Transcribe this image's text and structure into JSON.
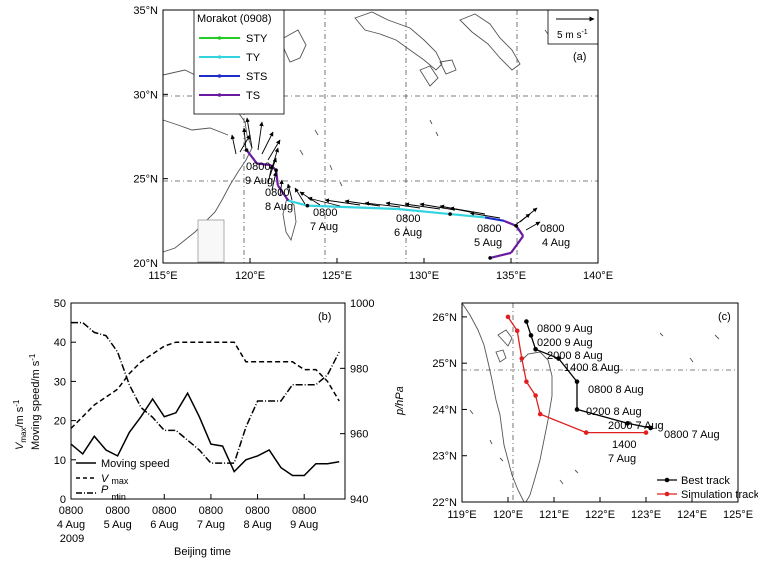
{
  "panel_a": {
    "label": "(a)",
    "legend_title": "Morakot (0908)",
    "legend": [
      {
        "name": "STY",
        "color": "#22cc22"
      },
      {
        "name": "TY",
        "color": "#33d3e0"
      },
      {
        "name": "STS",
        "color": "#1e2cc8"
      },
      {
        "name": "TS",
        "color": "#6a1aa0"
      }
    ],
    "scale_label": "5 m s",
    "scale_sup": "-1",
    "xticks": [
      "115°E",
      "120°E",
      "125°E",
      "130°E",
      "135°E",
      "140°E"
    ],
    "yticks": [
      "20°N",
      "25°N",
      "30°N",
      "35°N"
    ],
    "labels": [
      {
        "t1": "0800",
        "t2": "4 Aug"
      },
      {
        "t1": "0800",
        "t2": "5 Aug"
      },
      {
        "t1": "0800",
        "t2": "6 Aug"
      },
      {
        "t1": "0800",
        "t2": "7 Aug"
      },
      {
        "t1": "0800",
        "t2": "8 Aug"
      },
      {
        "t1": "0800",
        "t2": "9 Aug"
      }
    ]
  },
  "panel_b": {
    "label": "(b)",
    "ylabel_left_1": "V",
    "ylabel_left_sub": "max",
    "ylabel_left_2": "/m s",
    "ylabel_left_sup": "-1",
    "ylabel_left_3": "Moving speed/m s",
    "ylabel_left_3_sup": "-1",
    "ylabel_right": "p/hPa",
    "xlabel": "Beijing time",
    "xticks": [
      {
        "t1": "0800",
        "t2": "4 Aug",
        "t3": "2009"
      },
      {
        "t1": "0800",
        "t2": "5 Aug",
        "t3": ""
      },
      {
        "t1": "0800",
        "t2": "6 Aug",
        "t3": ""
      },
      {
        "t1": "0800",
        "t2": "7 Aug",
        "t3": ""
      },
      {
        "t1": "0800",
        "t2": "8 Aug",
        "t3": ""
      },
      {
        "t1": "0800",
        "t2": "9 Aug",
        "t3": ""
      }
    ],
    "yticks_left": [
      "0",
      "10",
      "20",
      "30",
      "40",
      "50"
    ],
    "yticks_right": [
      "940",
      "960",
      "980",
      "1000"
    ],
    "legend": {
      "moving": "Moving speed",
      "vmax_main": "V",
      "vmax_sub": "max",
      "pmin_main": "P",
      "pmin_sub": "min"
    }
  },
  "panel_c": {
    "label": "(c)",
    "xticks": [
      "119°E",
      "120°E",
      "121°E",
      "122°E",
      "123°E",
      "124°E",
      "125°E"
    ],
    "yticks": [
      "22°N",
      "23°N",
      "24°N",
      "25°N",
      "26°N"
    ],
    "legend": {
      "best": "Best track",
      "sim": "Simulation track"
    },
    "labels": [
      "0800 9 Aug",
      "0200 9 Aug",
      "2000 8 Aug",
      "1400 8 Aug",
      "0800 8 Aug",
      "0200 8 Aug",
      "2000 7 Aug",
      "0800 7 Aug",
      "1400",
      "7 Aug"
    ]
  },
  "chart_data": [
    {
      "type": "line",
      "panel": "a",
      "title": "Morakot (0908)",
      "xlim": [
        115,
        140
      ],
      "ylim": [
        20,
        35
      ],
      "grid": "dashed at 120E, 125E, 130E, 135E, 25N, 30N",
      "legend_position": "top-left",
      "track": [
        {
          "lon": 133.8,
          "lat": 20.3,
          "cat": "TS"
        },
        {
          "lon": 135.0,
          "lat": 20.6,
          "cat": "TS"
        },
        {
          "lon": 135.7,
          "lat": 21.6,
          "cat": "TS"
        },
        {
          "lon": 135.3,
          "lat": 22.2,
          "cat": "TS"
        },
        {
          "lon": 134.6,
          "lat": 22.5,
          "cat": "TS"
        },
        {
          "lon": 133.5,
          "lat": 22.7,
          "cat": "STS"
        },
        {
          "lon": 131.5,
          "lat": 22.9,
          "cat": "TY"
        },
        {
          "lon": 128.5,
          "lat": 23.2,
          "cat": "TY"
        },
        {
          "lon": 126.0,
          "lat": 23.3,
          "cat": "TY"
        },
        {
          "lon": 123.3,
          "lat": 23.4,
          "cat": "TY"
        },
        {
          "lon": 122.2,
          "lat": 23.7,
          "cat": "TY"
        },
        {
          "lon": 121.6,
          "lat": 24.6,
          "cat": "TS"
        },
        {
          "lon": 121.5,
          "lat": 25.5,
          "cat": "TS"
        },
        {
          "lon": 121.2,
          "lat": 25.8,
          "cat": "TS"
        },
        {
          "lon": 120.4,
          "lat": 25.9,
          "cat": "TS"
        },
        {
          "lon": 119.8,
          "lat": 26.7,
          "cat": "TS"
        }
      ]
    },
    {
      "type": "line",
      "panel": "b",
      "xlabel": "Beijing time",
      "ylabel": "Vmax/m s-1 Moving speed/m s-1",
      "y2label": "p/hPa",
      "ylim": [
        0,
        50
      ],
      "y2lim": [
        940,
        1000
      ],
      "x_hours_from_0800_4Aug": [
        0,
        6,
        12,
        18,
        24,
        30,
        36,
        42,
        48,
        54,
        60,
        66,
        72,
        78,
        84,
        90,
        96,
        102,
        108,
        114,
        120,
        126,
        132,
        138
      ],
      "series": [
        {
          "name": "Moving speed",
          "style": "solid",
          "values": [
            14,
            11.5,
            16,
            12.5,
            11,
            17,
            21,
            25.5,
            21,
            22,
            27,
            21,
            14,
            13.5,
            7,
            10,
            11,
            12.5,
            8,
            6,
            6,
            9,
            9,
            9.5
          ]
        },
        {
          "name": "Vmax",
          "style": "dashed",
          "values": [
            18,
            21,
            24,
            26,
            28,
            32,
            35,
            37,
            39,
            40,
            40,
            40,
            40,
            40,
            40,
            35,
            35,
            35,
            35,
            35,
            33,
            33,
            30,
            25
          ]
        },
        {
          "name": "Pmin",
          "style": "dash-dot",
          "axis": "right",
          "values": [
            994,
            994,
            991,
            990,
            985,
            975,
            968,
            965,
            961,
            961,
            958,
            955,
            951,
            951,
            951,
            962,
            970,
            970,
            970,
            975,
            975,
            975,
            978,
            985
          ]
        }
      ]
    },
    {
      "type": "line",
      "panel": "c",
      "xlim": [
        119,
        125
      ],
      "ylim": [
        22,
        26.3
      ],
      "grid": "dashed at 120E and 25N",
      "legend_position": "bottom-right",
      "series": [
        {
          "name": "Best track",
          "color": "#000000",
          "points": [
            [
              123.1,
              23.6
            ],
            [
              122.6,
              23.7
            ],
            [
              121.5,
              24.0
            ],
            [
              121.5,
              24.6
            ],
            [
              121.1,
              25.1
            ],
            [
              120.6,
              25.3
            ],
            [
              120.5,
              25.6
            ],
            [
              120.4,
              25.9
            ]
          ]
        },
        {
          "name": "Simulation track",
          "color": "#e02020",
          "points": [
            [
              123.0,
              23.5
            ],
            [
              121.7,
              23.5
            ],
            [
              120.7,
              23.9
            ],
            [
              120.6,
              24.3
            ],
            [
              120.4,
              24.6
            ],
            [
              120.3,
              25.1
            ],
            [
              120.2,
              25.7
            ],
            [
              120.0,
              26.0
            ]
          ]
        }
      ]
    }
  ]
}
